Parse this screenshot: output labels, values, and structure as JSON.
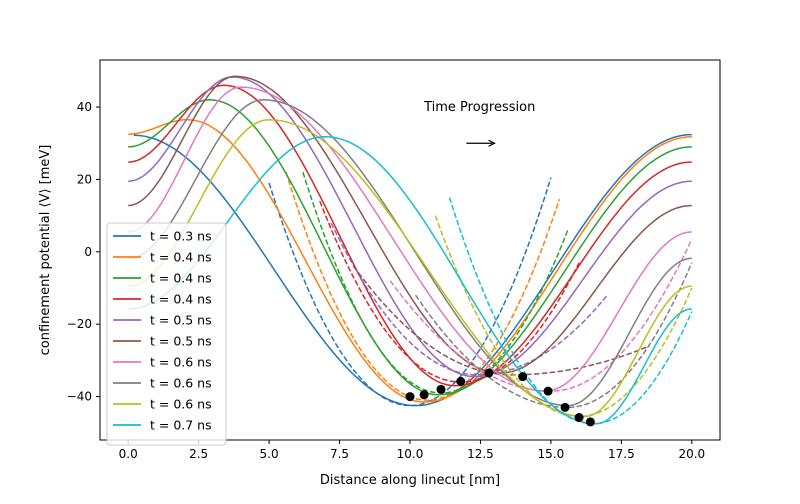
{
  "chart_data": {
    "type": "line",
    "title": "",
    "xlabel": "Distance along linecut [nm]",
    "ylabel": "confinement potential ⟨V⟩ [meV]",
    "xlim": [
      -1.0,
      21.0
    ],
    "ylim": [
      -52.0,
      53.0
    ],
    "x_ticks": [
      0,
      2.5,
      5,
      7.5,
      10,
      12.5,
      15,
      17.5,
      20
    ],
    "x_tick_labels": [
      "0.0",
      "2.5",
      "5.0",
      "7.5",
      "10.0",
      "12.5",
      "15.0",
      "17.5",
      "20.0"
    ],
    "y_ticks": [
      -40,
      -20,
      0,
      20,
      40
    ],
    "y_tick_labels": [
      "−40",
      "−20",
      "0",
      "20",
      "40"
    ],
    "grid": false,
    "legend_position": "lower-left",
    "annotation": {
      "text": "Time Progression",
      "arrow": "right",
      "arrow_from": [
        12.0,
        30
      ],
      "arrow_to": [
        13.0,
        30
      ],
      "text_at": [
        10.5,
        40
      ]
    },
    "series": [
      {
        "name": "t = 0.3 ns",
        "color": "#1f77b4",
        "offset": 0.0,
        "min_x": 10.2,
        "min_y": -42.5,
        "max_x": 0.2,
        "max_y": 32.2,
        "end_y": 32.4,
        "fit": [
          [
            5.0,
            19
          ],
          [
            10.0,
            -42.5
          ],
          [
            15.0,
            20.5
          ]
        ]
      },
      {
        "name": "t = 0.4 ns",
        "color": "#ff7f0e",
        "offset": 1.0,
        "min_x": 10.5,
        "min_y": -41.5,
        "max_x": 2.1,
        "max_y": 36.5,
        "end_y": 31.8,
        "fit": [
          [
            5.6,
            22
          ],
          [
            10.6,
            -41.0
          ],
          [
            15.3,
            14.5
          ]
        ]
      },
      {
        "name": "t = 0.4 ns",
        "color": "#2ca02c",
        "offset": 1.8,
        "min_x": 11.0,
        "min_y": -39.5,
        "max_x": 2.9,
        "max_y": 42.0,
        "end_y": 29.0,
        "fit": [
          [
            6.2,
            22
          ],
          [
            11.1,
            -39.0
          ],
          [
            15.6,
            6.0
          ]
        ]
      },
      {
        "name": "t = 0.4 ns",
        "color": "#d62728",
        "offset": 2.4,
        "min_x": 11.6,
        "min_y": -37.0,
        "max_x": 3.4,
        "max_y": 46.0,
        "end_y": 24.8,
        "fit": [
          [
            6.8,
            14
          ],
          [
            11.8,
            -36.0
          ],
          [
            16.0,
            -3.0
          ]
        ]
      },
      {
        "name": "t = 0.5 ns",
        "color": "#9467bd",
        "offset": 3.0,
        "min_x": 12.3,
        "min_y": -34.5,
        "max_x": 3.7,
        "max_y": 48.3,
        "end_y": 19.5,
        "fit": [
          [
            7.2,
            8
          ],
          [
            12.4,
            -34.0
          ],
          [
            17.0,
            -12.0
          ]
        ]
      },
      {
        "name": "t = 0.5 ns",
        "color": "#8c564b",
        "offset": 3.6,
        "min_x": 13.2,
        "min_y": -33.5,
        "max_x": 3.8,
        "max_y": 48.5,
        "end_y": 12.8,
        "fit": [
          [
            8.0,
            -4
          ],
          [
            13.6,
            -34.0
          ],
          [
            18.5,
            -26.0
          ]
        ]
      },
      {
        "name": "t = 0.6 ns",
        "color": "#e377c2",
        "offset": 4.2,
        "min_x": 14.8,
        "min_y": -38.5,
        "max_x": 4.0,
        "max_y": 45.5,
        "end_y": 5.5,
        "fit": [
          [
            9.3,
            -8
          ],
          [
            15.0,
            -38.5
          ],
          [
            20.0,
            3.5
          ]
        ]
      },
      {
        "name": "t = 0.6 ns",
        "color": "#7f7f7f",
        "offset": 4.8,
        "min_x": 15.6,
        "min_y": -42.5,
        "max_x": 4.8,
        "max_y": 42.0,
        "end_y": -1.8,
        "fit": [
          [
            10.2,
            -12
          ],
          [
            15.6,
            -43.0
          ],
          [
            20.0,
            -3.0
          ]
        ]
      },
      {
        "name": "t = 0.6 ns",
        "color": "#bcbd22",
        "offset": 5.4,
        "min_x": 16.2,
        "min_y": -45.5,
        "max_x": 5.0,
        "max_y": 36.5,
        "end_y": -9.5,
        "fit": [
          [
            10.9,
            10
          ],
          [
            16.0,
            -45.5
          ],
          [
            20.0,
            -10.0
          ]
        ]
      },
      {
        "name": "t = 0.7 ns",
        "color": "#17becf",
        "offset": 6.0,
        "min_x": 16.6,
        "min_y": -47.5,
        "max_x": 7.0,
        "max_y": 31.8,
        "end_y": -15.8,
        "fit": [
          [
            11.4,
            15
          ],
          [
            16.5,
            -47.5
          ],
          [
            20.0,
            -16.5
          ]
        ]
      }
    ],
    "minima_points": [
      {
        "x": 10.0,
        "y": -40.0
      },
      {
        "x": 10.5,
        "y": -39.5
      },
      {
        "x": 11.1,
        "y": -38.0
      },
      {
        "x": 11.8,
        "y": -35.8
      },
      {
        "x": 12.8,
        "y": -33.5
      },
      {
        "x": 14.0,
        "y": -34.5
      },
      {
        "x": 14.9,
        "y": -38.5
      },
      {
        "x": 15.5,
        "y": -43.0
      },
      {
        "x": 16.0,
        "y": -45.8
      },
      {
        "x": 16.4,
        "y": -47.0
      }
    ]
  }
}
